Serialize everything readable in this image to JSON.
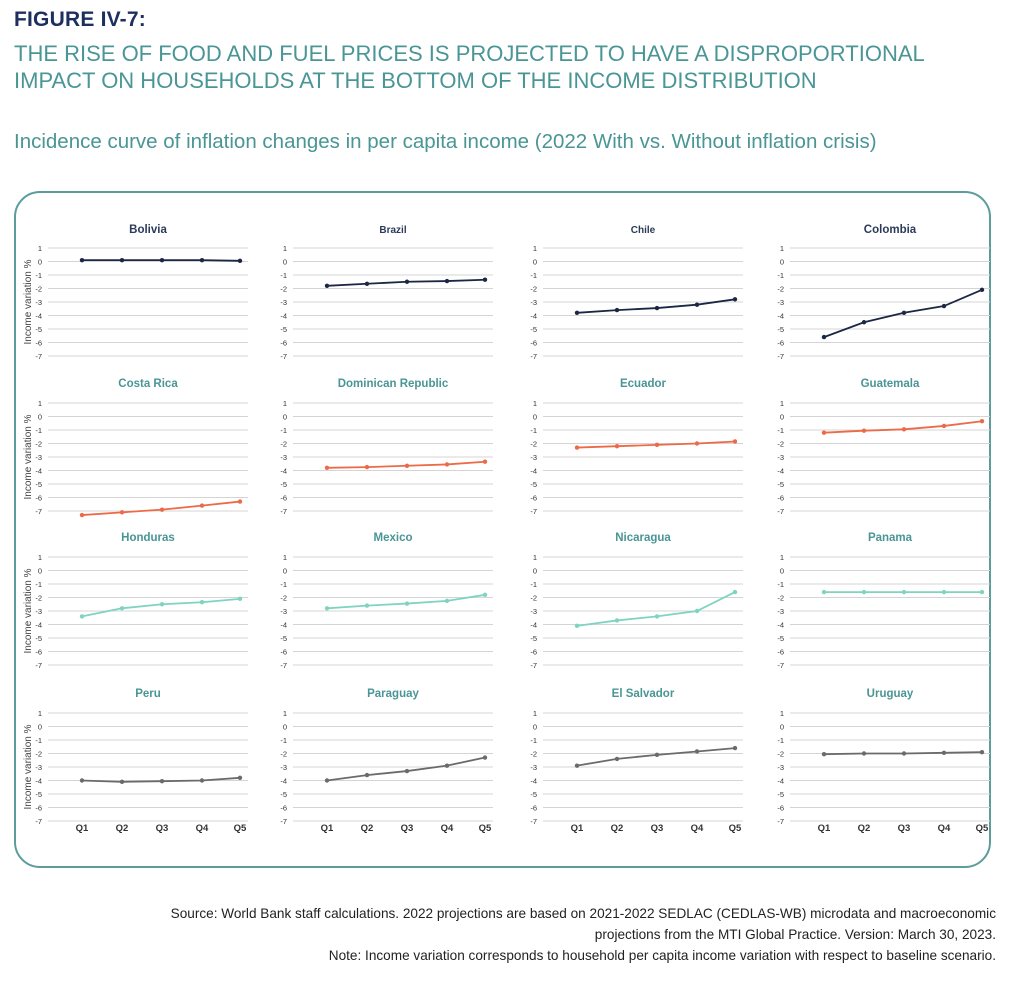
{
  "figure": {
    "label": "FIGURE IV-7:",
    "title": "THE RISE OF FOOD AND FUEL PRICES IS PROJECTED TO HAVE A DISPROPORTIONAL IMPACT ON HOUSEHOLDS AT THE BOTTOM OF THE INCOME DISTRIBUTION",
    "subtitle": "Incidence curve of inflation changes in per capita income (2022 With vs. Without inflation crisis)"
  },
  "chart_data": {
    "type": "line",
    "layout": "small-multiples-4x4",
    "ylabel": "Income variation %",
    "ylim": [
      -7,
      1
    ],
    "yticks": [
      1,
      0,
      -1,
      -2,
      -3,
      -4,
      -5,
      -6,
      -7
    ],
    "categories": [
      "Q1",
      "Q2",
      "Q3",
      "Q4",
      "Q5"
    ],
    "colors": {
      "navy": "#1b2744",
      "orange": "#ec6a47",
      "teal": "#7fd4c0",
      "gray": "#6b6b6b",
      "grid": "#d4d4d4",
      "title_navy": "#2c3a5a",
      "title_teal": "#4a9595"
    },
    "panels": [
      {
        "country": "Bolivia",
        "color": "navy",
        "values": [
          0.1,
          0.1,
          0.1,
          0.1,
          0.05
        ]
      },
      {
        "country": "Brazil",
        "color": "navy",
        "values": [
          -1.8,
          -1.65,
          -1.5,
          -1.45,
          -1.35
        ]
      },
      {
        "country": "Chile",
        "color": "navy",
        "values": [
          -3.8,
          -3.6,
          -3.45,
          -3.2,
          -2.8
        ]
      },
      {
        "country": "Colombia",
        "color": "navy",
        "values": [
          -5.6,
          -4.5,
          -3.8,
          -3.3,
          -2.1
        ]
      },
      {
        "country": "Costa Rica",
        "color": "orange",
        "values": [
          -7.3,
          -7.1,
          -6.9,
          -6.6,
          -6.3
        ]
      },
      {
        "country": "Dominican Republic",
        "color": "orange",
        "values": [
          -3.8,
          -3.75,
          -3.65,
          -3.55,
          -3.35
        ]
      },
      {
        "country": "Ecuador",
        "color": "orange",
        "values": [
          -2.3,
          -2.2,
          -2.1,
          -2.0,
          -1.85
        ]
      },
      {
        "country": "Guatemala",
        "color": "orange",
        "values": [
          -1.2,
          -1.05,
          -0.95,
          -0.7,
          -0.35
        ]
      },
      {
        "country": "Honduras",
        "color": "teal",
        "values": [
          -3.4,
          -2.8,
          -2.5,
          -2.35,
          -2.1
        ]
      },
      {
        "country": "Mexico",
        "color": "teal",
        "values": [
          -2.8,
          -2.6,
          -2.45,
          -2.25,
          -1.8
        ]
      },
      {
        "country": "Nicaragua",
        "color": "teal",
        "values": [
          -4.1,
          -3.7,
          -3.4,
          -3.0,
          -1.6
        ]
      },
      {
        "country": "Panama",
        "color": "teal",
        "values": [
          -1.6,
          -1.6,
          -1.6,
          -1.6,
          -1.6
        ]
      },
      {
        "country": "Peru",
        "color": "gray",
        "values": [
          -4.0,
          -4.1,
          -4.05,
          -4.0,
          -3.8
        ]
      },
      {
        "country": "Paraguay",
        "color": "gray",
        "values": [
          -4.0,
          -3.6,
          -3.3,
          -2.9,
          -2.3
        ]
      },
      {
        "country": "El Salvador",
        "color": "gray",
        "values": [
          -2.9,
          -2.4,
          -2.1,
          -1.85,
          -1.6
        ]
      },
      {
        "country": "Uruguay",
        "color": "gray",
        "values": [
          -2.05,
          -2.0,
          -2.0,
          -1.95,
          -1.9
        ]
      }
    ]
  },
  "footer": {
    "source_line1": "Source: World Bank staff calculations. 2022 projections are based on 2021-2022 SEDLAC (CEDLAS-WB) microdata and macroeconomic",
    "source_line2": "projections from the MTI Global Practice. Version: March 30, 2023.",
    "note": "Note: Income variation corresponds to household per capita income variation with respect to baseline scenario."
  }
}
